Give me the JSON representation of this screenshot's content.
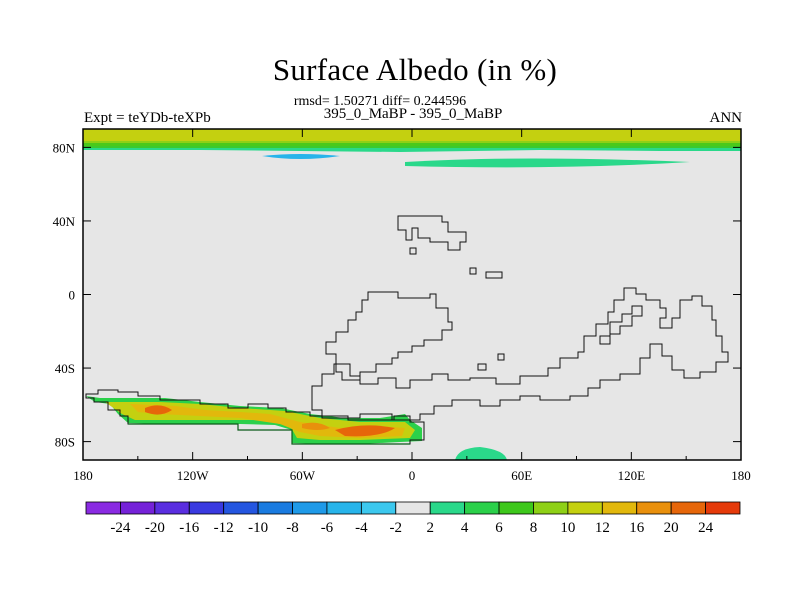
{
  "chart_data": {
    "type": "heatmap",
    "title": "Surface Albedo (in %)",
    "stats_line": "rmsd= 1.50271 diff= 0.244596",
    "subtitle": "395_0_MaBP - 395_0_MaBP",
    "left_label": "Expt = teYDb-teXPb",
    "right_label": "ANN",
    "x_ticks": [
      {
        "lon": -180,
        "label": "180"
      },
      {
        "lon": -120,
        "label": "120W"
      },
      {
        "lon": -60,
        "label": "60W"
      },
      {
        "lon": 0,
        "label": "0"
      },
      {
        "lon": 60,
        "label": "60E"
      },
      {
        "lon": 120,
        "label": "120E"
      },
      {
        "lon": 180,
        "label": "180"
      }
    ],
    "y_ticks": [
      {
        "lat": 80,
        "label": "80N"
      },
      {
        "lat": 40,
        "label": "40N"
      },
      {
        "lat": 0,
        "label": "0"
      },
      {
        "lat": -40,
        "label": "40S"
      },
      {
        "lat": -80,
        "label": "80S"
      }
    ],
    "xlim": [
      -180,
      180
    ],
    "ylim": [
      -90,
      90
    ],
    "colorbar": {
      "labels": [
        "-24",
        "-20",
        "-16",
        "-12",
        "-10",
        "-8",
        "-6",
        "-4",
        "-2",
        "2",
        "4",
        "6",
        "8",
        "10",
        "12",
        "16",
        "20",
        "24"
      ],
      "colors": [
        "#8a2be2",
        "#7522d8",
        "#5a2ee0",
        "#3a3ae0",
        "#2456e0",
        "#1a7be0",
        "#1f9ae8",
        "#27b4ea",
        "#3cc8ee",
        "#e6e6e6",
        "#2ad88a",
        "#2bd04a",
        "#3ec81c",
        "#8ed016",
        "#c4d010",
        "#e2b80c",
        "#e9900c",
        "#e6660a",
        "#e53a0a"
      ]
    },
    "background_value_color": "#e6e6e6",
    "regions": [
      {
        "name": "arctic-band",
        "approx_value": "8 to 10",
        "lat_range": [
          78,
          90
        ],
        "lon_range": [
          -180,
          180
        ]
      },
      {
        "name": "arctic-green-strip",
        "approx_value": "2 to 6",
        "lat_range": [
          76,
          80
        ],
        "lon_range": [
          -180,
          180
        ]
      },
      {
        "name": "southern-continent-anomaly",
        "approx_value": "4 to 20",
        "lat_range": [
          -82,
          -60
        ],
        "lon_range": [
          -180,
          10
        ]
      },
      {
        "name": "antarctic-patch",
        "approx_value": "2 to 4",
        "lat_range": [
          -90,
          -86
        ],
        "lon_range": [
          25,
          55
        ]
      }
    ]
  }
}
